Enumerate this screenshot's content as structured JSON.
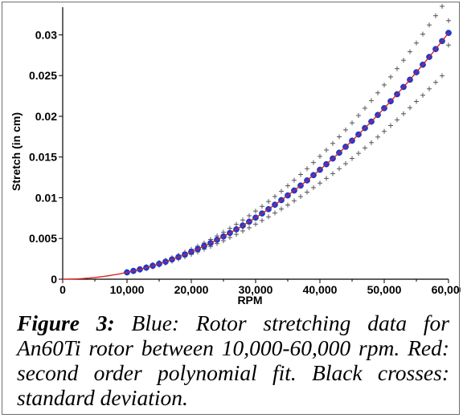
{
  "chart_data": {
    "type": "scatter",
    "xlabel": "RPM",
    "ylabel": "Stretch (in cm)",
    "xlim": [
      0,
      60000
    ],
    "ylim": [
      0,
      0.033
    ],
    "x_ticks": [
      "0",
      "10,000",
      "20,000",
      "30,000",
      "40,000",
      "50,000",
      "60,000"
    ],
    "y_ticks": [
      "0",
      "0.005",
      "0.01",
      "0.015",
      "0.02",
      "0.025",
      "0.03"
    ],
    "grid": false,
    "legend": "none",
    "fit": {
      "type": "second order polynomial",
      "coefficients": {
        "a2": 8.4e-12,
        "a1": 0,
        "a0": 0
      },
      "x_range": [
        0,
        60000
      ],
      "color": "#e02020"
    },
    "series": [
      {
        "role": "data",
        "color": "#1f3bd6",
        "x": [
          10000,
          11000,
          12000,
          13000,
          14000,
          15000,
          16000,
          17000,
          18000,
          19000,
          20000,
          21000,
          22000,
          23000,
          24000,
          25000,
          26000,
          27000,
          28000,
          29000,
          30000,
          31000,
          32000,
          33000,
          34000,
          35000,
          36000,
          37000,
          38000,
          39000,
          40000,
          41000,
          42000,
          43000,
          44000,
          45000,
          46000,
          47000,
          48000,
          49000,
          50000,
          51000,
          52000,
          53000,
          54000,
          55000,
          56000,
          57000,
          58000,
          59000,
          60000
        ],
        "y": [
          0.00084,
          0.00102,
          0.00121,
          0.00142,
          0.00165,
          0.00189,
          0.00215,
          0.00243,
          0.00272,
          0.00303,
          0.00336,
          0.0037,
          0.00407,
          0.00444,
          0.00484,
          0.00525,
          0.00568,
          0.00612,
          0.00659,
          0.00706,
          0.00756,
          0.00807,
          0.0086,
          0.00915,
          0.00971,
          0.01029,
          0.01089,
          0.0115,
          0.01213,
          0.01278,
          0.01344,
          0.01412,
          0.01482,
          0.01553,
          0.01626,
          0.01701,
          0.01777,
          0.01856,
          0.01935,
          0.02017,
          0.021,
          0.02185,
          0.02271,
          0.0236,
          0.02449,
          0.02541,
          0.02634,
          0.02729,
          0.02826,
          0.02924,
          0.03024
        ]
      },
      {
        "role": "standard deviation",
        "color": "#555555",
        "x": [
          10000,
          11000,
          12000,
          13000,
          14000,
          15000,
          16000,
          17000,
          18000,
          19000,
          20000,
          21000,
          22000,
          23000,
          24000,
          25000,
          26000,
          27000,
          28000,
          29000,
          30000,
          31000,
          32000,
          33000,
          34000,
          35000,
          36000,
          37000,
          38000,
          39000,
          40000,
          41000,
          42000,
          43000,
          44000,
          45000,
          46000,
          47000,
          48000,
          49000,
          50000,
          51000,
          52000,
          53000,
          54000,
          55000,
          56000,
          57000,
          58000,
          59000,
          60000
        ],
        "upper": [
          0.00091,
          0.0011,
          0.00131,
          0.00154,
          0.00179,
          0.00205,
          0.00233,
          0.00264,
          0.00296,
          0.00331,
          0.00367,
          0.00405,
          0.00445,
          0.00487,
          0.00531,
          0.00577,
          0.00624,
          0.00674,
          0.00726,
          0.0078,
          0.00836,
          0.00894,
          0.00954,
          0.01016,
          0.0108,
          0.01147,
          0.01215,
          0.01285,
          0.01357,
          0.01432,
          0.01508,
          0.01586,
          0.01667,
          0.01749,
          0.01834,
          0.0192,
          0.02009,
          0.021,
          0.02193,
          0.02288,
          0.02385,
          0.02484,
          0.02585,
          0.02688,
          0.02793,
          0.029,
          0.0301,
          0.03121,
          0.03235,
          0.0335,
          0.03174
        ],
        "lower": [
          0.00077,
          0.00094,
          0.00111,
          0.0013,
          0.00151,
          0.00173,
          0.00197,
          0.00222,
          0.00248,
          0.00275,
          0.00305,
          0.00335,
          0.00369,
          0.00401,
          0.00437,
          0.00473,
          0.00512,
          0.0055,
          0.00592,
          0.00632,
          0.00676,
          0.0072,
          0.00766,
          0.00814,
          0.00862,
          0.00911,
          0.00963,
          0.01015,
          0.01069,
          0.01124,
          0.0118,
          0.01238,
          0.01297,
          0.01357,
          0.01418,
          0.01482,
          0.01545,
          0.01612,
          0.01677,
          0.01746,
          0.01815,
          0.01886,
          0.01957,
          0.02032,
          0.02105,
          0.02182,
          0.02258,
          0.02337,
          0.02417,
          0.02498,
          0.02874
        ]
      }
    ]
  },
  "caption": {
    "label": "Figure 3:",
    "text": "Blue: Rotor stretching data for An60Ti rotor between 10,000-60,000 rpm. Red: second order polynomial fit. Black crosses: standard deviation."
  }
}
